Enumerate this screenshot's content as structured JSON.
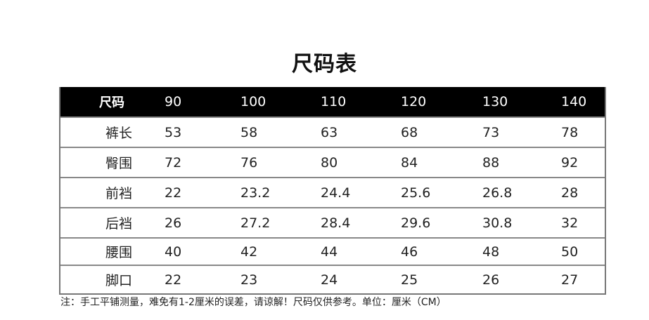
{
  "title": "尺码表",
  "table": {
    "header": {
      "label": "尺码",
      "sizes": [
        "90",
        "100",
        "110",
        "120",
        "130",
        "140"
      ]
    },
    "rows": [
      {
        "label": "裤长",
        "values": [
          "53",
          "58",
          "63",
          "68",
          "73",
          "78"
        ]
      },
      {
        "label": "臀围",
        "values": [
          "72",
          "76",
          "80",
          "84",
          "88",
          "92"
        ]
      },
      {
        "label": "前裆",
        "values": [
          "22",
          "23.2",
          "24.4",
          "25.6",
          "26.8",
          "28"
        ]
      },
      {
        "label": "后裆",
        "values": [
          "26",
          "27.2",
          "28.4",
          "29.6",
          "30.8",
          "32"
        ]
      },
      {
        "label": "腰围",
        "values": [
          "40",
          "42",
          "44",
          "46",
          "48",
          "50"
        ]
      },
      {
        "label": "脚口",
        "values": [
          "22",
          "23",
          "24",
          "25",
          "26",
          "27"
        ]
      }
    ]
  },
  "note": "注：手工平铺测量，难免有1-2厘米的误差，请谅解！尺码仅供参考。单位：厘米（CM）"
}
